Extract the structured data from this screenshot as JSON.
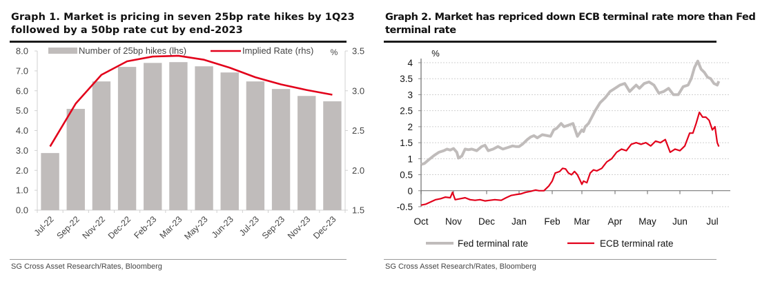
{
  "charts": [
    {
      "id": "graph1",
      "title": "Graph 1. Market is pricing in seven 25bp rate hikes by 1Q23 followed by a 50bp rate cut by end-2023",
      "source": "SG Cross Asset Research/Rates, Bloomberg"
    },
    {
      "id": "graph2",
      "title": "Graph 2. Market has repriced down ECB terminal rate more than Fed terminal rate",
      "source": "SG Cross Asset Research/Rates, Bloomberg"
    }
  ],
  "chart_data": [
    {
      "type": "bar",
      "title": "Graph 1. Market is pricing in seven 25bp rate hikes by 1Q23 followed by a 50bp rate cut by end-2023",
      "categories": [
        "Jul-22",
        "Sep-22",
        "Nov-22",
        "Dec-22",
        "Feb-23",
        "Mar-23",
        "May-23",
        "Jun-23",
        "Jul-23",
        "Sep-23",
        "Nov-23",
        "Dec-23"
      ],
      "series": [
        {
          "name": "Number of 25bp hikes (lhs)",
          "type": "bar",
          "axis": "left",
          "color": "#c0bcbb",
          "values": [
            2.87,
            5.09,
            6.47,
            7.2,
            7.4,
            7.44,
            7.23,
            6.92,
            6.47,
            6.09,
            5.74,
            5.47
          ]
        },
        {
          "name": "Implied Rate (rhs)",
          "type": "line",
          "axis": "right",
          "color": "#e2001a",
          "values": [
            2.3,
            2.84,
            3.2,
            3.37,
            3.43,
            3.44,
            3.39,
            3.29,
            3.17,
            3.08,
            3.01,
            2.95
          ]
        }
      ],
      "y_left": {
        "min": 0,
        "max": 8,
        "ticks": [
          "0.0",
          "1.0",
          "2.0",
          "3.0",
          "4.0",
          "5.0",
          "6.0",
          "7.0",
          "8.0"
        ]
      },
      "y_right": {
        "min": 1.5,
        "max": 3.5,
        "unit": "%",
        "ticks": [
          "1.5",
          "2.0",
          "2.5",
          "3.0",
          "3.5"
        ]
      },
      "legend": [
        "Number of 25bp hikes (lhs)",
        "Implied Rate (rhs)"
      ],
      "legend_position": "top",
      "grid": false
    },
    {
      "type": "line",
      "title": "Graph 2. Market has repriced down ECB terminal rate more than Fed terminal rate",
      "ylabel": "%",
      "x_ticks": [
        "Oct",
        "Nov",
        "Dec",
        "Jan",
        "Feb",
        "Mar",
        "Apr",
        "May",
        "Jun",
        "Jul"
      ],
      "x_unit": "months since start of Oct (fractional)",
      "y": {
        "min": -0.5,
        "max": 4,
        "ticks": [
          "-0.5",
          "0",
          "0.5",
          "1",
          "1.5",
          "2",
          "2.5",
          "3",
          "3.5",
          "4"
        ]
      },
      "grid": true,
      "legend": [
        "Fed terminal rate",
        "ECB terminal rate"
      ],
      "legend_position": "bottom",
      "series": [
        {
          "name": "Fed terminal rate",
          "color": "#c0bcbb",
          "x": [
            0,
            0.1,
            0.25,
            0.4,
            0.55,
            0.7,
            0.8,
            0.9,
            1.0,
            1.1,
            1.15,
            1.25,
            1.35,
            1.45,
            1.55,
            1.7,
            1.85,
            1.95,
            2.05,
            2.2,
            2.35,
            2.5,
            2.65,
            2.8,
            2.9,
            3.0,
            3.1,
            3.25,
            3.35,
            3.45,
            3.55,
            3.7,
            3.85,
            3.95,
            4.05,
            4.15,
            4.3,
            4.4,
            4.55,
            4.7,
            4.85,
            5.0,
            5.05,
            5.1,
            5.2,
            5.3,
            5.4,
            5.55,
            5.7,
            5.85,
            6.0,
            6.15,
            6.3,
            6.45,
            6.55,
            6.65,
            6.75,
            6.9,
            7.05,
            7.2,
            7.35,
            7.5,
            7.65,
            7.8,
            7.95,
            8.1,
            8.25,
            8.35,
            8.45,
            8.55,
            8.65,
            8.75,
            8.85,
            8.95,
            9.05,
            9.15,
            9.2
          ],
          "y": [
            0.82,
            0.85,
            0.98,
            1.1,
            1.2,
            1.25,
            1.3,
            1.27,
            1.32,
            1.2,
            1.02,
            1.08,
            1.3,
            1.28,
            1.3,
            1.25,
            1.38,
            1.42,
            1.25,
            1.3,
            1.38,
            1.3,
            1.35,
            1.4,
            1.38,
            1.38,
            1.45,
            1.6,
            1.68,
            1.72,
            1.65,
            1.75,
            1.72,
            1.7,
            1.9,
            1.95,
            2.1,
            2.0,
            2.05,
            2.1,
            1.7,
            1.9,
            1.85,
            2.0,
            2.1,
            2.3,
            2.5,
            2.75,
            2.9,
            3.1,
            3.2,
            3.3,
            3.35,
            3.1,
            3.2,
            3.3,
            3.2,
            3.35,
            3.4,
            3.3,
            3.05,
            3.1,
            3.2,
            3.0,
            3.0,
            3.25,
            3.3,
            3.5,
            3.85,
            4.05,
            3.8,
            3.7,
            3.55,
            3.5,
            3.35,
            3.3,
            3.42
          ]
        },
        {
          "name": "ECB terminal rate",
          "color": "#e2001a",
          "x": [
            0,
            0.15,
            0.3,
            0.45,
            0.6,
            0.75,
            0.9,
            0.97,
            1.05,
            1.2,
            1.35,
            1.5,
            1.65,
            1.8,
            1.95,
            2.1,
            2.25,
            2.45,
            2.6,
            2.75,
            2.9,
            3.05,
            3.2,
            3.35,
            3.5,
            3.6,
            3.75,
            3.9,
            4.0,
            4.1,
            4.25,
            4.35,
            4.45,
            4.55,
            4.65,
            4.75,
            4.85,
            4.95,
            5.0,
            5.05,
            5.15,
            5.25,
            5.35,
            5.45,
            5.6,
            5.75,
            5.9,
            6.05,
            6.2,
            6.35,
            6.5,
            6.65,
            6.8,
            6.95,
            7.1,
            7.25,
            7.4,
            7.55,
            7.7,
            7.85,
            8.0,
            8.15,
            8.3,
            8.4,
            8.5,
            8.6,
            8.7,
            8.8,
            8.9,
            9.0,
            9.08,
            9.15,
            9.2
          ],
          "y": [
            -0.45,
            -0.42,
            -0.35,
            -0.28,
            -0.25,
            -0.2,
            -0.22,
            -0.05,
            -0.28,
            -0.25,
            -0.22,
            -0.28,
            -0.3,
            -0.28,
            -0.32,
            -0.3,
            -0.28,
            -0.3,
            -0.22,
            -0.15,
            -0.12,
            -0.1,
            -0.05,
            -0.02,
            0.02,
            0.0,
            0.0,
            0.15,
            0.3,
            0.55,
            0.6,
            0.7,
            0.68,
            0.55,
            0.5,
            0.6,
            0.5,
            0.3,
            0.2,
            0.3,
            0.25,
            0.55,
            0.65,
            0.62,
            0.7,
            0.9,
            1.0,
            1.2,
            1.3,
            1.25,
            1.45,
            1.5,
            1.45,
            1.5,
            1.4,
            1.55,
            1.5,
            1.6,
            1.2,
            1.3,
            1.25,
            1.4,
            1.8,
            1.8,
            2.1,
            2.45,
            2.3,
            2.3,
            2.2,
            1.9,
            2.0,
            1.5,
            1.38
          ]
        }
      ]
    }
  ]
}
